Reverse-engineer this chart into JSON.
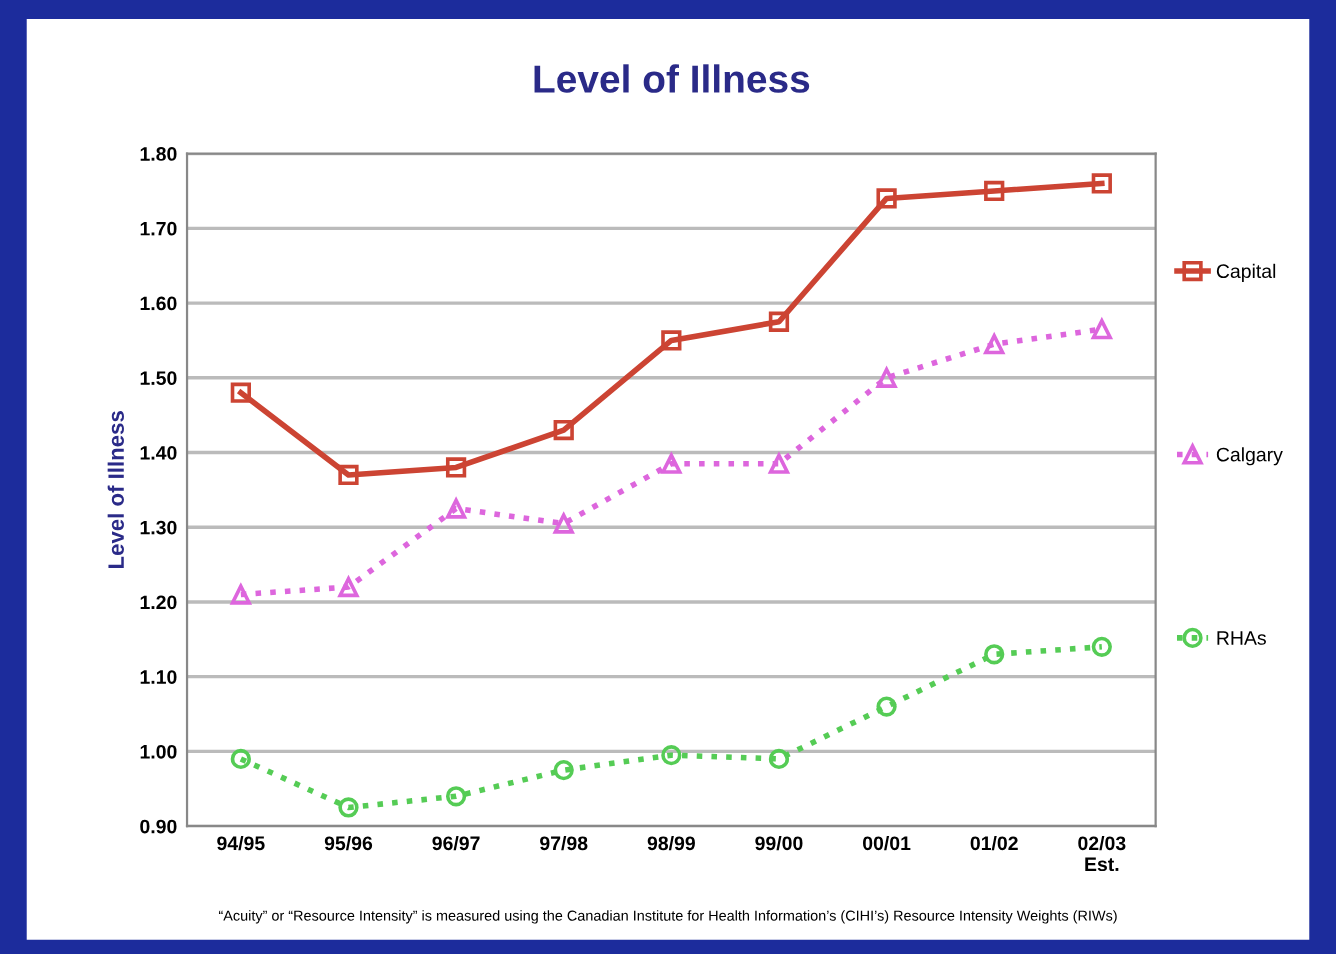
{
  "chart_data": {
    "type": "line",
    "title": "Level of Illness",
    "ylabel": "Level of Illness",
    "categories": [
      "94/95",
      "95/96",
      "96/97",
      "97/98",
      "98/99",
      "99/00",
      "00/01",
      "01/02",
      "02/03\nEst."
    ],
    "series": [
      {
        "name": "Capital",
        "color": "#cc4433",
        "marker": "square",
        "line_style": "solid",
        "values": [
          1.48,
          1.37,
          1.38,
          1.43,
          1.55,
          1.575,
          1.74,
          1.75,
          1.76
        ]
      },
      {
        "name": "Calgary",
        "color": "#dd66dd",
        "marker": "triangle",
        "line_style": "dotted",
        "values": [
          1.21,
          1.22,
          1.325,
          1.305,
          1.385,
          1.385,
          1.5,
          1.545,
          1.565
        ]
      },
      {
        "name": "RHAs",
        "color": "#55cc55",
        "marker": "circle",
        "line_style": "dotted",
        "values": [
          0.99,
          0.925,
          0.94,
          0.975,
          0.995,
          0.99,
          1.06,
          1.13,
          1.14
        ]
      }
    ],
    "ylim": [
      0.9,
      1.8
    ],
    "yticks": [
      {
        "value": 0.9,
        "label": "0.90"
      },
      {
        "value": 1.0,
        "label": "1.00"
      },
      {
        "value": 1.1,
        "label": "1.10"
      },
      {
        "value": 1.2,
        "label": "1.20"
      },
      {
        "value": 1.3,
        "label": "1.30"
      },
      {
        "value": 1.4,
        "label": "1.40"
      },
      {
        "value": 1.5,
        "label": "1.50"
      },
      {
        "value": 1.6,
        "label": "1.60"
      },
      {
        "value": 1.7,
        "label": "1.70"
      },
      {
        "value": 1.8,
        "label": "1.80"
      }
    ],
    "grid": "y",
    "legend": "right",
    "annotations": [
      "“Acuity” or “Resource Intensity” is measured using the Canadian Institute for Health Information’s (CIHI’s) Resource Intensity Weights (RIWs)"
    ]
  }
}
